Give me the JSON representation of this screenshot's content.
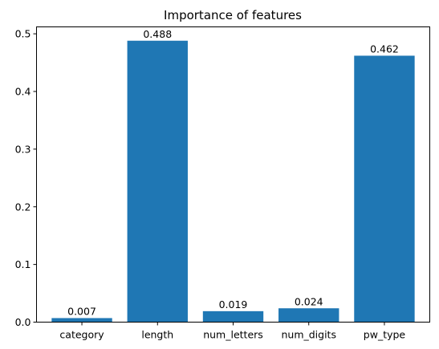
{
  "chart_data": {
    "type": "bar",
    "title": "Importance of features",
    "xlabel": "",
    "ylabel": "",
    "categories": [
      "category",
      "length",
      "num_letters",
      "num_digits",
      "pw_type"
    ],
    "values": [
      0.007,
      0.488,
      0.019,
      0.024,
      0.462
    ],
    "data_labels": [
      "0.007",
      "0.488",
      "0.019",
      "0.024",
      "0.462"
    ],
    "ylim": [
      0,
      0.512
    ],
    "yticks": [
      0.0,
      0.1,
      0.2,
      0.3,
      0.4,
      0.5
    ],
    "ytick_labels": [
      "0.0",
      "0.1",
      "0.2",
      "0.3",
      "0.4",
      "0.5"
    ],
    "bar_color": "#1f77b4",
    "grid": false,
    "legend": "none"
  }
}
